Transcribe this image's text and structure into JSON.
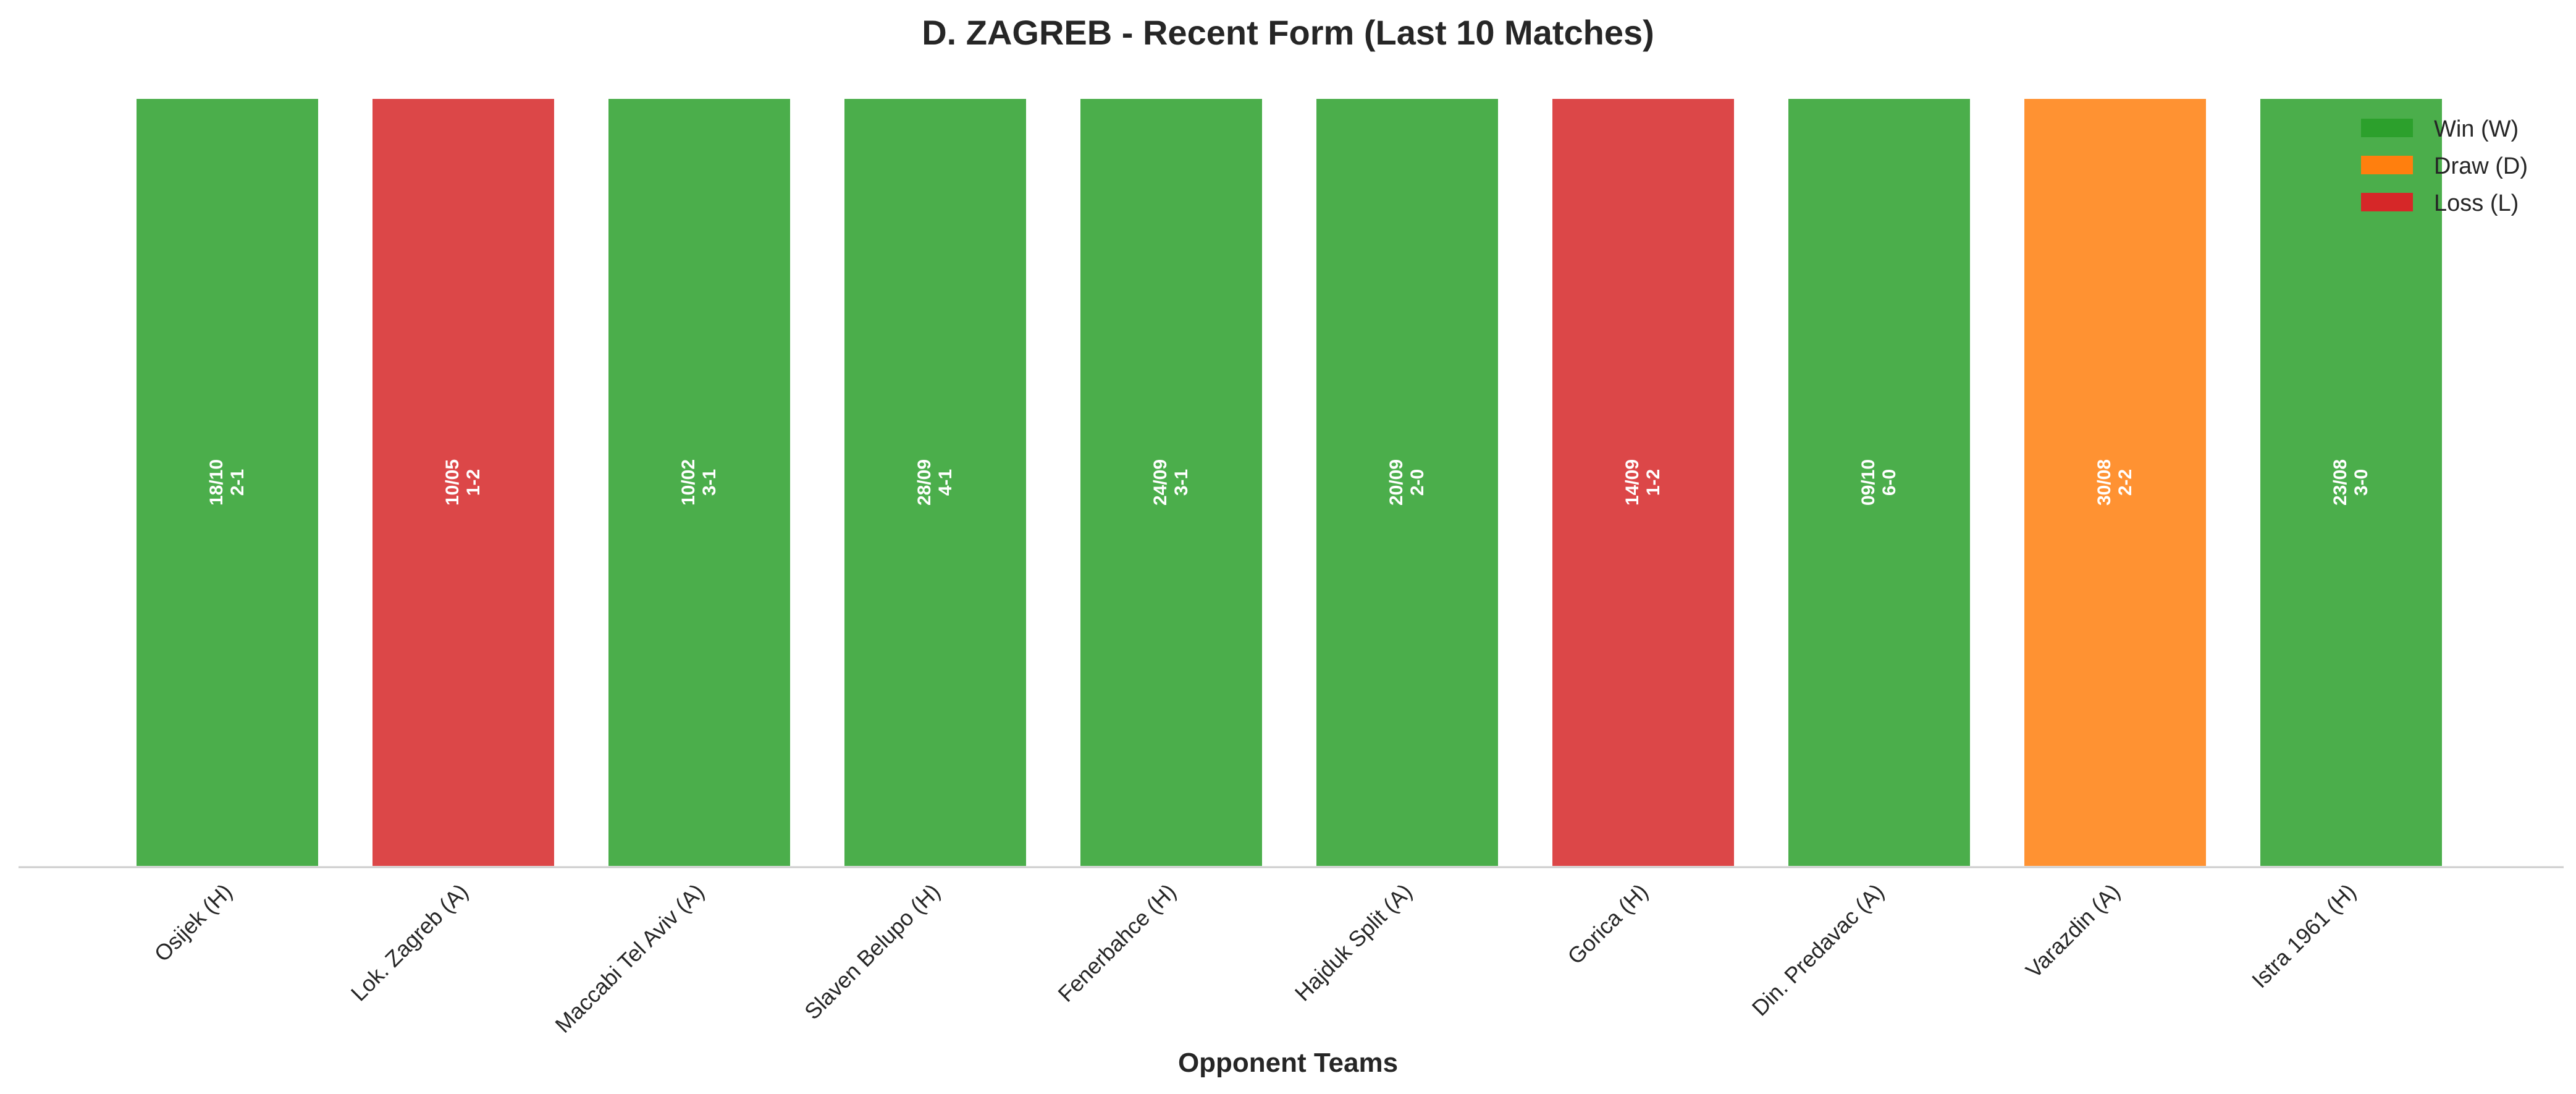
{
  "chart_data": {
    "type": "bar",
    "title": "D. ZAGREB - Recent Form (Last 10 Matches)",
    "xlabel": "Opponent Teams",
    "ylabel": "",
    "ylim": [
      0,
      1
    ],
    "grid": false,
    "legend_position": "top-right",
    "categories": [
      "Osijek (H)",
      "Lok. Zagreb (A)",
      "Maccabi Tel Aviv (A)",
      "Slaven Belupo (H)",
      "Fenerbahce (H)",
      "Hajduk Split (A)",
      "Gorica (H)",
      "Din. Predavac (A)",
      "Varazdin (A)",
      "Istra 1961 (H)"
    ],
    "values": [
      1,
      1,
      1,
      1,
      1,
      1,
      1,
      1,
      1,
      1
    ],
    "results": [
      "W",
      "L",
      "W",
      "W",
      "W",
      "W",
      "L",
      "W",
      "D",
      "W"
    ],
    "dates": [
      "18/10",
      "10/05",
      "10/02",
      "28/09",
      "24/09",
      "20/09",
      "14/09",
      "09/10",
      "30/08",
      "23/08"
    ],
    "scores": [
      "2-1",
      "1-2",
      "3-1",
      "4-1",
      "3-1",
      "2-0",
      "1-2",
      "6-0",
      "2-2",
      "3-0"
    ],
    "legend": [
      {
        "key": "W",
        "label": "Win (W)",
        "color": "#2ca02c"
      },
      {
        "key": "D",
        "label": "Draw (D)",
        "color": "#ff7f0e"
      },
      {
        "key": "L",
        "label": "Loss (L)",
        "color": "#d62728"
      }
    ]
  }
}
